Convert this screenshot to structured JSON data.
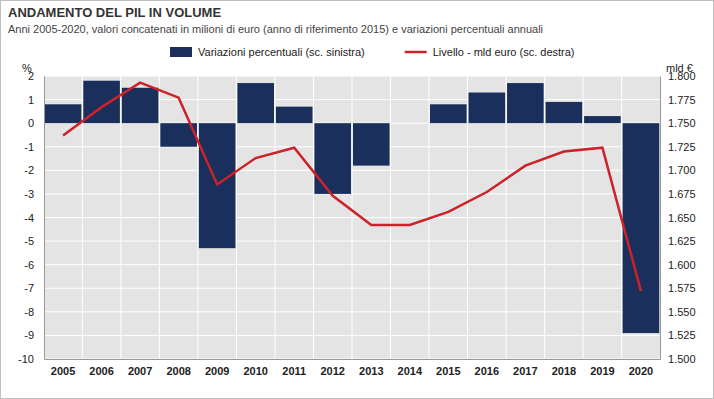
{
  "chart_data": {
    "type": "bar",
    "title": "ANDAMENTO DEL PIL IN VOLUME",
    "subtitle": "Anni 2005-2020, valori concatenati in milioni di euro (anno di riferimento 2015) e variazioni percentuali annuali",
    "categories": [
      "2005",
      "2006",
      "2007",
      "2008",
      "2009",
      "2010",
      "2011",
      "2012",
      "2013",
      "2014",
      "2015",
      "2016",
      "2017",
      "2018",
      "2019",
      "2020"
    ],
    "series": [
      {
        "name": "Variazioni percentuali (sc. sinistra)",
        "type": "bar",
        "color": "#1b2f5c",
        "values": [
          0.8,
          1.8,
          1.5,
          -1.0,
          -5.3,
          1.7,
          0.7,
          -3.0,
          -1.8,
          0.0,
          0.8,
          1.3,
          1.7,
          0.9,
          0.3,
          -8.9
        ]
      },
      {
        "name": "Livello - mld euro (sc. destra)",
        "type": "line",
        "axis": "y2",
        "color": "#cc2229",
        "values": [
          1737,
          1767,
          1793,
          1777,
          1685,
          1713,
          1724,
          1673,
          1642,
          1642,
          1656,
          1677,
          1705,
          1720,
          1724,
          1572
        ]
      }
    ],
    "ylabel": "%",
    "y2label": "mld €",
    "ylim": [
      -10,
      2
    ],
    "yticks": [
      -10,
      -9,
      -8,
      -7,
      -6,
      -5,
      -4,
      -3,
      -2,
      -1,
      0,
      1,
      2
    ],
    "y2lim": [
      1500,
      1800
    ],
    "y2ticks": [
      {
        "value": 1500,
        "label": "1.500"
      },
      {
        "value": 1525,
        "label": "1.525"
      },
      {
        "value": 1550,
        "label": "1.550"
      },
      {
        "value": 1575,
        "label": "1.575"
      },
      {
        "value": 1600,
        "label": "1.600"
      },
      {
        "value": 1625,
        "label": "1.625"
      },
      {
        "value": 1650,
        "label": "1.650"
      },
      {
        "value": 1675,
        "label": "1.675"
      },
      {
        "value": 1700,
        "label": "1.700"
      },
      {
        "value": 1725,
        "label": "1.725"
      },
      {
        "value": 1750,
        "label": "1.750"
      },
      {
        "value": 1775,
        "label": "1.775"
      },
      {
        "value": 1800,
        "label": "1.800"
      }
    ],
    "grid": true,
    "legend": "top"
  }
}
